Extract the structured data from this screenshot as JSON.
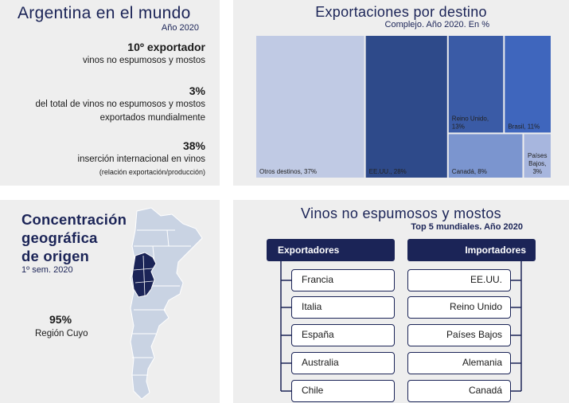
{
  "argentina": {
    "title": "Argentina en el mundo",
    "subtitle": "Año 2020",
    "stats": [
      {
        "value": "10º exportador",
        "lines": [
          "vinos no espumosos y mostos"
        ]
      },
      {
        "value": "3%",
        "lines": [
          "del total de vinos no espumosos y mostos",
          "exportados mundialmente"
        ]
      },
      {
        "value": "38%",
        "lines": [
          "inserción internacional en vinos"
        ],
        "note": "(relación exportación/producción)"
      }
    ]
  },
  "destinations": {
    "title": "Exportaciones por destino",
    "subtitle": "Complejo. Año 2020. En %"
  },
  "chart_data": {
    "type": "treemap",
    "title": "Exportaciones por destino",
    "subtitle": "Complejo. Año 2020. En %",
    "unit": "%",
    "items": [
      {
        "name": "Otros destinos",
        "value": 37,
        "label": "Otros destinos, 37%",
        "color": "#c0cae4"
      },
      {
        "name": "EE.UU.",
        "value": 28,
        "label": "EE.UU., 28%",
        "color": "#2e4a8a"
      },
      {
        "name": "Reino Unido",
        "value": 13,
        "label_lines": [
          "Reino Unido,",
          "13%"
        ],
        "color": "#3a5ba6"
      },
      {
        "name": "Brasil",
        "value": 11,
        "label": "Brasil, 11%",
        "color": "#3f66bd"
      },
      {
        "name": "Canadá",
        "value": 8,
        "label": "Canadá, 8%",
        "color": "#7b95cf"
      },
      {
        "name": "Países Bajos",
        "value": 3,
        "label_lines": [
          "Países",
          "Bajos,",
          "3%"
        ],
        "color": "#a7b6de"
      }
    ]
  },
  "concentration": {
    "title_lines": [
      "Concentración",
      "geográfica",
      "de origen"
    ],
    "subtitle": "1º sem. 2020",
    "percent": "95%",
    "region": "Región Cuyo"
  },
  "top5": {
    "title": "Vinos no espumosos y mostos",
    "subtitle": "Top 5 mundiales. Año 2020",
    "exporters_header": "Exportadores",
    "importers_header": "Importadores",
    "exporters": [
      "Francia",
      "Italia",
      "España",
      "Australia",
      "Chile"
    ],
    "importers": [
      "EE.UU.",
      "Reino Unido",
      "Países Bajos",
      "Alemania",
      "Canadá"
    ]
  },
  "colors": {
    "navy": "#1b2457",
    "panel_bg": "#eeeeee",
    "map_land": "#c9d3e3",
    "map_cuyo": "#1b2457"
  },
  "icons": {
    "map": "argentina-map-icon"
  }
}
